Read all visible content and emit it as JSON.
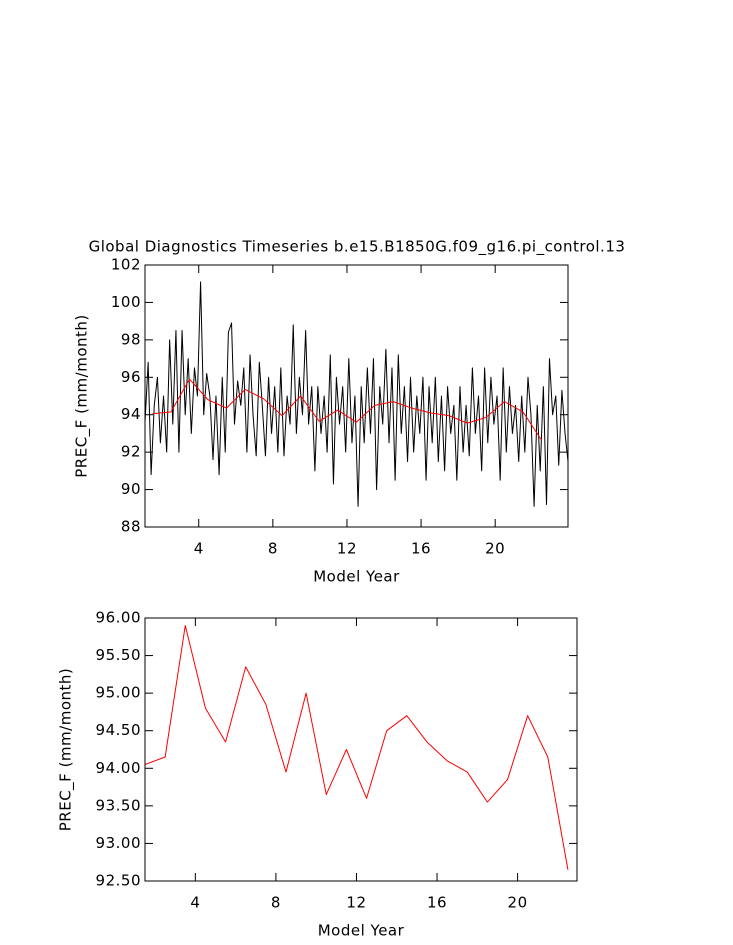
{
  "chart_data": [
    {
      "type": "line",
      "title": "Global Diagnostics Timeseries b.e15.B1850G.f09_g16.pi_control.13",
      "x_label": "Model Year",
      "y_label": "PREC_F (mm/month)",
      "xlim": [
        1.1,
        23.93
      ],
      "ylim": [
        88,
        102
      ],
      "xticks": [
        4,
        8,
        12,
        16,
        20
      ],
      "yticks": [
        88,
        90,
        92,
        94,
        96,
        98,
        100,
        102
      ],
      "series": [
        {
          "color": "#000000",
          "x": [
            1.1,
            1.27,
            1.43,
            1.6,
            1.77,
            1.93,
            2.1,
            2.27,
            2.43,
            2.6,
            2.77,
            2.93,
            3.1,
            3.27,
            3.43,
            3.6,
            3.77,
            3.93,
            4.1,
            4.27,
            4.43,
            4.6,
            4.77,
            4.93,
            5.1,
            5.27,
            5.43,
            5.6,
            5.77,
            5.93,
            6.1,
            6.27,
            6.43,
            6.6,
            6.77,
            6.93,
            7.1,
            7.27,
            7.43,
            7.6,
            7.77,
            7.93,
            8.1,
            8.27,
            8.43,
            8.6,
            8.77,
            8.93,
            9.1,
            9.27,
            9.43,
            9.6,
            9.77,
            9.93,
            10.1,
            10.27,
            10.43,
            10.6,
            10.77,
            10.93,
            11.1,
            11.27,
            11.43,
            11.6,
            11.77,
            11.93,
            12.1,
            12.27,
            12.43,
            12.6,
            12.77,
            12.93,
            13.1,
            13.27,
            13.43,
            13.6,
            13.77,
            13.93,
            14.1,
            14.27,
            14.43,
            14.6,
            14.77,
            14.93,
            15.1,
            15.27,
            15.43,
            15.6,
            15.77,
            15.93,
            16.1,
            16.27,
            16.43,
            16.6,
            16.77,
            16.93,
            17.1,
            17.27,
            17.43,
            17.6,
            17.77,
            17.93,
            18.1,
            18.27,
            18.43,
            18.6,
            18.77,
            18.93,
            19.1,
            19.27,
            19.43,
            19.6,
            19.77,
            19.93,
            20.1,
            20.27,
            20.43,
            20.6,
            20.77,
            20.93,
            21.1,
            21.27,
            21.43,
            21.6,
            21.77,
            21.93,
            22.1,
            22.27,
            22.43,
            22.6,
            22.77,
            22.93,
            23.1,
            23.27,
            23.43,
            23.6,
            23.77,
            23.93
          ],
          "values": [
            93.6,
            96.8,
            90.8,
            94.5,
            96.0,
            92.5,
            95.0,
            92.0,
            98.0,
            93.5,
            98.5,
            92.0,
            98.5,
            94.0,
            97.0,
            93.0,
            96.5,
            95.0,
            101.1,
            94.0,
            96.2,
            95.0,
            91.6,
            95.0,
            90.8,
            96.0,
            92.0,
            98.4,
            98.9,
            93.5,
            95.8,
            94.5,
            96.5,
            92.0,
            97.2,
            94.0,
            91.8,
            96.8,
            94.5,
            91.8,
            96.0,
            93.0,
            95.5,
            92.0,
            96.5,
            91.8,
            95.0,
            93.5,
            98.8,
            93.0,
            96.0,
            94.0,
            98.5,
            93.5,
            95.5,
            91.0,
            95.5,
            93.0,
            95.0,
            92.0,
            97.2,
            90.3,
            96.0,
            93.5,
            95.5,
            92.0,
            97.0,
            92.5,
            95.0,
            89.1,
            95.5,
            92.5,
            96.5,
            93.0,
            97.0,
            90.0,
            95.5,
            93.5,
            97.5,
            92.5,
            96.5,
            90.5,
            97.2,
            93.0,
            95.5,
            91.5,
            96.0,
            92.0,
            95.0,
            93.0,
            96.0,
            90.5,
            95.5,
            92.5,
            96.0,
            91.5,
            95.0,
            91.0,
            95.5,
            93.0,
            94.5,
            90.5,
            95.5,
            92.0,
            94.5,
            91.8,
            96.5,
            93.0,
            95.0,
            91.0,
            96.5,
            92.5,
            96.0,
            93.5,
            95.0,
            90.5,
            96.5,
            92.0,
            95.5,
            93.0,
            94.5,
            91.5,
            95.0,
            92.0,
            96.0,
            94.0,
            89.1,
            94.5,
            91.0,
            95.5,
            89.2,
            97.0,
            94.0,
            95.0,
            91.3,
            95.3,
            93.0,
            91.5
          ]
        },
        {
          "color": "#ff0000",
          "x": [
            1.5,
            2.5,
            3.5,
            4.5,
            5.5,
            6.5,
            7.5,
            8.5,
            9.5,
            10.5,
            11.5,
            12.5,
            13.5,
            14.5,
            15.5,
            16.5,
            17.5,
            18.5,
            19.5,
            20.5,
            21.5,
            22.5
          ],
          "values": [
            94.05,
            94.15,
            95.9,
            94.8,
            94.35,
            95.35,
            94.85,
            93.95,
            95.0,
            93.65,
            94.25,
            93.6,
            94.5,
            94.7,
            94.35,
            94.1,
            93.95,
            93.55,
            93.85,
            94.7,
            94.15,
            92.65
          ]
        }
      ]
    },
    {
      "type": "line",
      "x_label": "Model Year",
      "y_label": "PREC_F (mm/month)",
      "xlim": [
        1.5,
        22.95
      ],
      "ylim": [
        92.5,
        96
      ],
      "xticks": [
        4,
        8,
        12,
        16,
        20
      ],
      "yticks": [
        {
          "value": 92.5,
          "label": "92.50"
        },
        {
          "value": 93,
          "label": "93.00"
        },
        {
          "value": 93.5,
          "label": "93.50"
        },
        {
          "value": 94,
          "label": "94.00"
        },
        {
          "value": 94.5,
          "label": "94.50"
        },
        {
          "value": 95,
          "label": "95.00"
        },
        {
          "value": 95.5,
          "label": "95.50"
        },
        {
          "value": 96,
          "label": "96.00"
        }
      ],
      "series": [
        {
          "color": "#ff0000",
          "x": [
            1.5,
            2.5,
            3.5,
            4.5,
            5.5,
            6.5,
            7.5,
            8.5,
            9.5,
            10.5,
            11.5,
            12.5,
            13.5,
            14.5,
            15.5,
            16.5,
            17.5,
            18.5,
            19.5,
            20.5,
            21.5,
            22.5
          ],
          "values": [
            94.05,
            94.15,
            95.9,
            94.8,
            94.35,
            95.35,
            94.85,
            93.95,
            95.0,
            93.65,
            94.25,
            93.6,
            94.5,
            94.7,
            94.35,
            94.1,
            93.95,
            93.55,
            93.85,
            94.7,
            94.15,
            92.65
          ]
        }
      ]
    }
  ]
}
